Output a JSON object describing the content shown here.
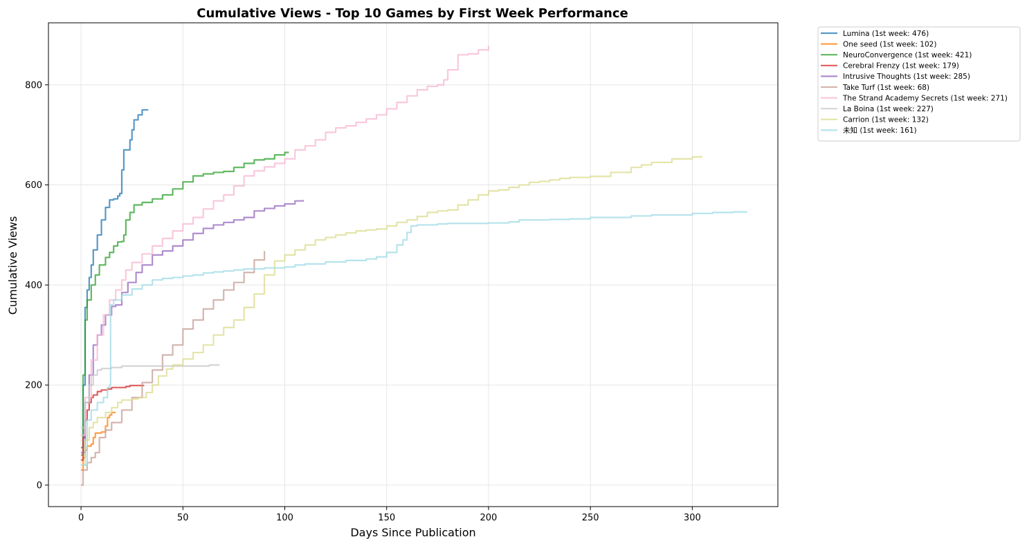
{
  "chart_data": {
    "type": "line",
    "title": "Cumulative Views - Top 10 Games by First Week Performance",
    "xlabel": "Days Since Publication",
    "ylabel": "Cumulative Views",
    "xlim": [
      -16,
      342
    ],
    "ylim": [
      -43,
      924
    ],
    "xticks": [
      0,
      50,
      100,
      150,
      200,
      250,
      300
    ],
    "yticks": [
      0,
      200,
      400,
      600,
      800
    ],
    "grid": true,
    "legend_position": "outside-top-right",
    "series": [
      {
        "name": "Lumina (1st week: 476)",
        "color": "#1f77b4",
        "points": [
          [
            0,
            75
          ],
          [
            1,
            200
          ],
          [
            2,
            355
          ],
          [
            3,
            390
          ],
          [
            4,
            415
          ],
          [
            5,
            440
          ],
          [
            6,
            470
          ],
          [
            8,
            500
          ],
          [
            10,
            530
          ],
          [
            12,
            555
          ],
          [
            14,
            570
          ],
          [
            16,
            572
          ],
          [
            18,
            578
          ],
          [
            19,
            583
          ],
          [
            20,
            630
          ],
          [
            21,
            670
          ],
          [
            24,
            690
          ],
          [
            25,
            710
          ],
          [
            26,
            730
          ],
          [
            28,
            740
          ],
          [
            30,
            750
          ],
          [
            33,
            750
          ]
        ]
      },
      {
        "name": "One seed (1st week: 102)",
        "color": "#ff7f0e",
        "points": [
          [
            0,
            30
          ],
          [
            1,
            55
          ],
          [
            2,
            70
          ],
          [
            3,
            78
          ],
          [
            5,
            82
          ],
          [
            6,
            95
          ],
          [
            7,
            104
          ],
          [
            10,
            106
          ],
          [
            12,
            118
          ],
          [
            13,
            135
          ],
          [
            14,
            140
          ],
          [
            15,
            145
          ],
          [
            17,
            145
          ]
        ]
      },
      {
        "name": "NeuroConvergence (1st week: 421)",
        "color": "#2ca02c",
        "points": [
          [
            0,
            60
          ],
          [
            1,
            220
          ],
          [
            2,
            330
          ],
          [
            3,
            370
          ],
          [
            5,
            400
          ],
          [
            7,
            420
          ],
          [
            9,
            440
          ],
          [
            12,
            455
          ],
          [
            14,
            465
          ],
          [
            16,
            478
          ],
          [
            18,
            486
          ],
          [
            20,
            487
          ],
          [
            21,
            500
          ],
          [
            22,
            530
          ],
          [
            24,
            545
          ],
          [
            26,
            560
          ],
          [
            30,
            565
          ],
          [
            35,
            572
          ],
          [
            40,
            580
          ],
          [
            45,
            592
          ],
          [
            50,
            606
          ],
          [
            55,
            618
          ],
          [
            60,
            622
          ],
          [
            65,
            625
          ],
          [
            70,
            627
          ],
          [
            75,
            635
          ],
          [
            80,
            643
          ],
          [
            85,
            650
          ],
          [
            90,
            652
          ],
          [
            95,
            660
          ],
          [
            100,
            665
          ],
          [
            102,
            665
          ]
        ]
      },
      {
        "name": "Cerebral Frenzy (1st week: 179)",
        "color": "#d62728",
        "points": [
          [
            0,
            50
          ],
          [
            1,
            95
          ],
          [
            2,
            130
          ],
          [
            3,
            150
          ],
          [
            4,
            165
          ],
          [
            5,
            175
          ],
          [
            6,
            180
          ],
          [
            8,
            187
          ],
          [
            10,
            190
          ],
          [
            13,
            192
          ],
          [
            15,
            195
          ],
          [
            20,
            195
          ],
          [
            22,
            197
          ],
          [
            24,
            199
          ],
          [
            31,
            199
          ]
        ]
      },
      {
        "name": "Intrusive Thoughts (1st week: 285)",
        "color": "#9467bd",
        "points": [
          [
            0,
            65
          ],
          [
            2,
            165
          ],
          [
            4,
            220
          ],
          [
            6,
            280
          ],
          [
            8,
            300
          ],
          [
            10,
            320
          ],
          [
            12,
            340
          ],
          [
            15,
            357
          ],
          [
            17,
            360
          ],
          [
            20,
            385
          ],
          [
            23,
            405
          ],
          [
            27,
            425
          ],
          [
            30,
            440
          ],
          [
            35,
            460
          ],
          [
            40,
            468
          ],
          [
            45,
            478
          ],
          [
            50,
            490
          ],
          [
            55,
            503
          ],
          [
            60,
            513
          ],
          [
            65,
            520
          ],
          [
            70,
            525
          ],
          [
            75,
            530
          ],
          [
            80,
            535
          ],
          [
            85,
            548
          ],
          [
            90,
            553
          ],
          [
            95,
            558
          ],
          [
            100,
            562
          ],
          [
            105,
            568
          ],
          [
            109,
            570
          ]
        ]
      },
      {
        "name": "Take Turf (1st week: 68)",
        "color": "#c49c94",
        "points": [
          [
            0,
            0
          ],
          [
            1,
            30
          ],
          [
            3,
            45
          ],
          [
            5,
            55
          ],
          [
            7,
            65
          ],
          [
            9,
            95
          ],
          [
            12,
            110
          ],
          [
            15,
            125
          ],
          [
            20,
            150
          ],
          [
            25,
            175
          ],
          [
            30,
            205
          ],
          [
            35,
            230
          ],
          [
            40,
            260
          ],
          [
            45,
            280
          ],
          [
            50,
            312
          ],
          [
            55,
            330
          ],
          [
            60,
            352
          ],
          [
            65,
            370
          ],
          [
            70,
            390
          ],
          [
            75,
            405
          ],
          [
            80,
            425
          ],
          [
            85,
            450
          ],
          [
            90,
            468
          ]
        ]
      },
      {
        "name": "The Strand Academy Secrets (1st week: 271)",
        "color": "#f7b6d2",
        "points": [
          [
            0,
            100
          ],
          [
            2,
            175
          ],
          [
            5,
            250
          ],
          [
            8,
            300
          ],
          [
            11,
            340
          ],
          [
            14,
            370
          ],
          [
            17,
            390
          ],
          [
            20,
            410
          ],
          [
            22,
            430
          ],
          [
            25,
            445
          ],
          [
            30,
            462
          ],
          [
            35,
            478
          ],
          [
            40,
            493
          ],
          [
            45,
            508
          ],
          [
            50,
            522
          ],
          [
            55,
            535
          ],
          [
            60,
            552
          ],
          [
            65,
            568
          ],
          [
            70,
            580
          ],
          [
            75,
            598
          ],
          [
            80,
            618
          ],
          [
            85,
            628
          ],
          [
            90,
            636
          ],
          [
            95,
            643
          ],
          [
            100,
            652
          ],
          [
            105,
            670
          ],
          [
            110,
            678
          ],
          [
            115,
            690
          ],
          [
            120,
            705
          ],
          [
            125,
            714
          ],
          [
            130,
            718
          ],
          [
            135,
            725
          ],
          [
            140,
            732
          ],
          [
            145,
            740
          ],
          [
            150,
            752
          ],
          [
            155,
            765
          ],
          [
            160,
            778
          ],
          [
            165,
            790
          ],
          [
            170,
            797
          ],
          [
            175,
            800
          ],
          [
            178,
            810
          ],
          [
            180,
            830
          ],
          [
            185,
            860
          ],
          [
            190,
            862
          ],
          [
            195,
            870
          ],
          [
            200,
            878
          ]
        ]
      },
      {
        "name": "La Boina (1st week: 227)",
        "color": "#c7c7c7",
        "points": [
          [
            0,
            115
          ],
          [
            2,
            165
          ],
          [
            4,
            200
          ],
          [
            6,
            220
          ],
          [
            8,
            230
          ],
          [
            10,
            233
          ],
          [
            15,
            235
          ],
          [
            20,
            238
          ],
          [
            30,
            238
          ],
          [
            40,
            238
          ],
          [
            50,
            238
          ],
          [
            60,
            238
          ],
          [
            63,
            240
          ],
          [
            68,
            240
          ]
        ]
      },
      {
        "name": "Carrion (1st week: 132)",
        "color": "#dbdb8d",
        "points": [
          [
            0,
            40
          ],
          [
            2,
            90
          ],
          [
            4,
            115
          ],
          [
            6,
            125
          ],
          [
            8,
            135
          ],
          [
            12,
            145
          ],
          [
            15,
            155
          ],
          [
            18,
            165
          ],
          [
            20,
            170
          ],
          [
            25,
            172
          ],
          [
            28,
            175
          ],
          [
            32,
            185
          ],
          [
            35,
            200
          ],
          [
            38,
            218
          ],
          [
            42,
            232
          ],
          [
            45,
            240
          ],
          [
            50,
            252
          ],
          [
            55,
            265
          ],
          [
            60,
            280
          ],
          [
            65,
            300
          ],
          [
            70,
            315
          ],
          [
            75,
            330
          ],
          [
            80,
            355
          ],
          [
            85,
            382
          ],
          [
            90,
            420
          ],
          [
            95,
            448
          ],
          [
            100,
            460
          ],
          [
            105,
            470
          ],
          [
            110,
            480
          ],
          [
            115,
            490
          ],
          [
            120,
            495
          ],
          [
            125,
            500
          ],
          [
            130,
            504
          ],
          [
            135,
            508
          ],
          [
            140,
            510
          ],
          [
            145,
            512
          ],
          [
            150,
            518
          ],
          [
            155,
            525
          ],
          [
            160,
            530
          ],
          [
            165,
            537
          ],
          [
            170,
            545
          ],
          [
            175,
            548
          ],
          [
            180,
            550
          ],
          [
            185,
            560
          ],
          [
            190,
            570
          ],
          [
            195,
            580
          ],
          [
            200,
            588
          ],
          [
            205,
            590
          ],
          [
            210,
            595
          ],
          [
            215,
            600
          ],
          [
            220,
            605
          ],
          [
            225,
            607
          ],
          [
            230,
            610
          ],
          [
            235,
            613
          ],
          [
            240,
            615
          ],
          [
            250,
            617
          ],
          [
            260,
            625
          ],
          [
            270,
            635
          ],
          [
            275,
            640
          ],
          [
            280,
            645
          ],
          [
            290,
            652
          ],
          [
            300,
            656
          ],
          [
            305,
            656
          ]
        ]
      },
      {
        "name": "未知 (1st week: 161)",
        "color": "#9edae5",
        "points": [
          [
            0,
            40
          ],
          [
            3,
            130
          ],
          [
            5,
            150
          ],
          [
            8,
            165
          ],
          [
            11,
            175
          ],
          [
            13,
            195
          ],
          [
            14,
            200
          ],
          [
            14.5,
            360
          ],
          [
            16,
            370
          ],
          [
            20,
            380
          ],
          [
            25,
            392
          ],
          [
            30,
            400
          ],
          [
            35,
            410
          ],
          [
            40,
            413
          ],
          [
            45,
            415
          ],
          [
            50,
            418
          ],
          [
            55,
            420
          ],
          [
            60,
            424
          ],
          [
            65,
            426
          ],
          [
            70,
            428
          ],
          [
            75,
            430
          ],
          [
            80,
            432
          ],
          [
            90,
            434
          ],
          [
            100,
            436
          ],
          [
            105,
            440
          ],
          [
            110,
            442
          ],
          [
            120,
            446
          ],
          [
            130,
            449
          ],
          [
            140,
            452
          ],
          [
            145,
            456
          ],
          [
            150,
            465
          ],
          [
            155,
            480
          ],
          [
            158,
            490
          ],
          [
            160,
            505
          ],
          [
            162,
            518
          ],
          [
            165,
            520
          ],
          [
            170,
            520
          ],
          [
            175,
            522
          ],
          [
            180,
            523
          ],
          [
            200,
            524
          ],
          [
            210,
            526
          ],
          [
            215,
            530
          ],
          [
            230,
            531
          ],
          [
            240,
            532
          ],
          [
            250,
            535
          ],
          [
            270,
            538
          ],
          [
            280,
            540
          ],
          [
            300,
            543
          ],
          [
            310,
            545
          ],
          [
            320,
            546
          ],
          [
            327,
            546
          ]
        ]
      }
    ]
  }
}
